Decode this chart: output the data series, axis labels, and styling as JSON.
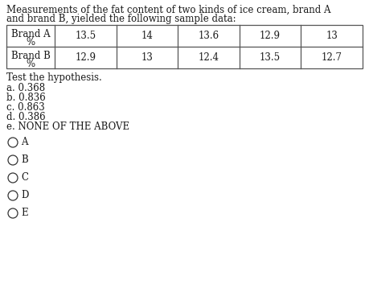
{
  "title_line1": "Measurements of the fat content of two kinds of ice cream, brand A",
  "title_line2": "and brand B, yielded the following sample data:",
  "row1_label_line1": "Brand A",
  "row1_label_line2": "%",
  "row1_data": [
    "13.5",
    "14",
    "13.6",
    "12.9",
    "13"
  ],
  "row2_label_line1": "Brand B",
  "row2_label_line2": "%",
  "row2_data": [
    "12.9",
    "13",
    "12.4",
    "13.5",
    "12.7"
  ],
  "question_text": "Test the hypothesis.",
  "choices": [
    "a. 0.368",
    "b. 0.836",
    "c. 0.863",
    "d. 0.386",
    "e. NONE OF THE ABOVE"
  ],
  "radio_labels": [
    "A",
    "B",
    "C",
    "D",
    "E"
  ],
  "bg_color": "#ffffff",
  "text_color": "#1a1a1a",
  "font_size": 8.5,
  "table_line_color": "#555555",
  "radio_color": "#333333"
}
